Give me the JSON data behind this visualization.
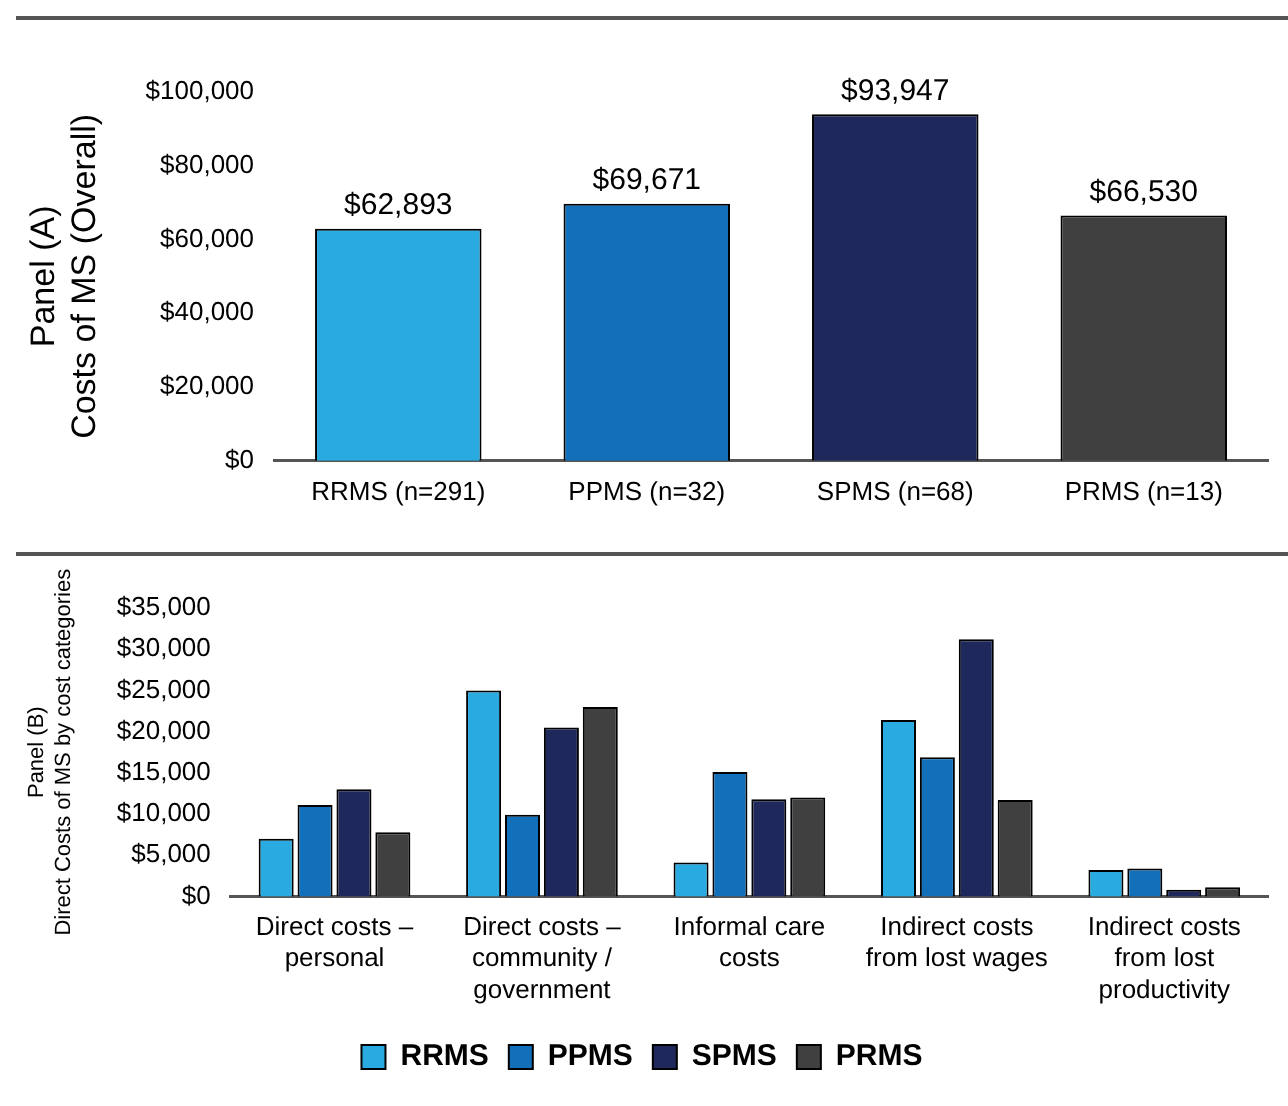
{
  "chart_data": [
    {
      "type": "bar",
      "ylabel": "Panel (A)\nCosts of MS (Overall)",
      "categories": [
        "RRMS (n=291)",
        "PPMS (n=32)",
        "SPMS (n=68)",
        "PRMS (n=13)"
      ],
      "values": [
        62893,
        69671,
        93947,
        66530
      ],
      "colors": [
        "#29abe2",
        "#1170b9",
        "#1f285a",
        "#404040"
      ],
      "value_labels": [
        "$62,893",
        "$69,671",
        "$93,947",
        "$66,530"
      ],
      "ylim": [
        0,
        100000
      ],
      "yticks": [
        {
          "value": 0,
          "label": "$0"
        },
        {
          "value": 20000,
          "label": "$20,000"
        },
        {
          "value": 40000,
          "label": "$40,000"
        },
        {
          "value": 60000,
          "label": "$60,000"
        },
        {
          "value": 80000,
          "label": "$80,000"
        },
        {
          "value": 100000,
          "label": "$100,000"
        }
      ],
      "grid": false,
      "legend": false
    },
    {
      "type": "bar",
      "ylabel": "Panel (B)\nDirect Costs of MS by cost categories",
      "categories": [
        "Direct costs – personal",
        "Direct costs – community / government",
        "Informal care costs",
        "Indirect costs from lost wages",
        "Indirect costs from lost productivity"
      ],
      "series": [
        {
          "name": "RRMS",
          "color": "#29abe2",
          "values": [
            7000,
            25000,
            4100,
            21400,
            3200
          ]
        },
        {
          "name": "PPMS",
          "color": "#1170b9",
          "values": [
            11100,
            9900,
            15100,
            16900,
            3400
          ]
        },
        {
          "name": "SPMS",
          "color": "#1f285a",
          "values": [
            13000,
            20500,
            11800,
            31200,
            800
          ]
        },
        {
          "name": "PRMS",
          "color": "#404040",
          "values": [
            7800,
            23000,
            12000,
            11700,
            1100
          ]
        }
      ],
      "ylim": [
        0,
        35000
      ],
      "yticks": [
        {
          "value": 0,
          "label": "$0"
        },
        {
          "value": 5000,
          "label": "$5,000"
        },
        {
          "value": 10000,
          "label": "$10,000"
        },
        {
          "value": 15000,
          "label": "$15,000"
        },
        {
          "value": 20000,
          "label": "$20,000"
        },
        {
          "value": 25000,
          "label": "$25,000"
        },
        {
          "value": 30000,
          "label": "$30,000"
        },
        {
          "value": 35000,
          "label": "$35,000"
        }
      ],
      "grid": false,
      "legend": "bottom"
    }
  ]
}
